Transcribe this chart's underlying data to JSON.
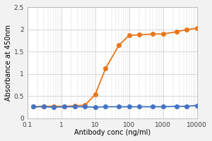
{
  "orange_x": [
    0.15,
    0.3,
    0.6,
    1.2,
    2.5,
    5,
    10,
    20,
    50,
    100,
    200,
    500,
    1000,
    2500,
    5000,
    10000
  ],
  "orange_y": [
    0.26,
    0.27,
    0.27,
    0.27,
    0.28,
    0.3,
    0.54,
    1.12,
    1.65,
    1.87,
    1.88,
    1.9,
    1.9,
    1.95,
    2.0,
    2.03
  ],
  "blue_x": [
    0.15,
    0.3,
    0.6,
    1.2,
    2.5,
    5,
    10,
    20,
    50,
    100,
    200,
    500,
    1000,
    2500,
    5000,
    10000
  ],
  "blue_y": [
    0.26,
    0.26,
    0.25,
    0.26,
    0.26,
    0.26,
    0.25,
    0.26,
    0.26,
    0.26,
    0.26,
    0.26,
    0.26,
    0.27,
    0.27,
    0.29
  ],
  "orange_color": "#E8761A",
  "blue_color": "#4472C4",
  "xlabel": "Antibody conc (ng/ml)",
  "ylabel": "Absorbance at 450nm",
  "xlim": [
    0.1,
    10000
  ],
  "ylim": [
    0,
    2.5
  ],
  "yticks": [
    0,
    0.5,
    1.0,
    1.5,
    2.0,
    2.5
  ],
  "ytick_labels": [
    "0",
    "0.5",
    "1",
    "1.5",
    "2",
    "2.5"
  ],
  "xtick_labels": [
    "0.1",
    "1",
    "10",
    "100",
    "1000",
    "10000"
  ],
  "xtick_vals": [
    0.1,
    1,
    10,
    100,
    1000,
    10000
  ],
  "grid_color": "#D0D0D0",
  "bg_color": "#FFFFFF",
  "fig_color": "#F2F2F2",
  "marker_size": 4.5,
  "line_width": 1.3,
  "xlabel_fontsize": 7,
  "ylabel_fontsize": 7,
  "tick_fontsize": 6.5
}
